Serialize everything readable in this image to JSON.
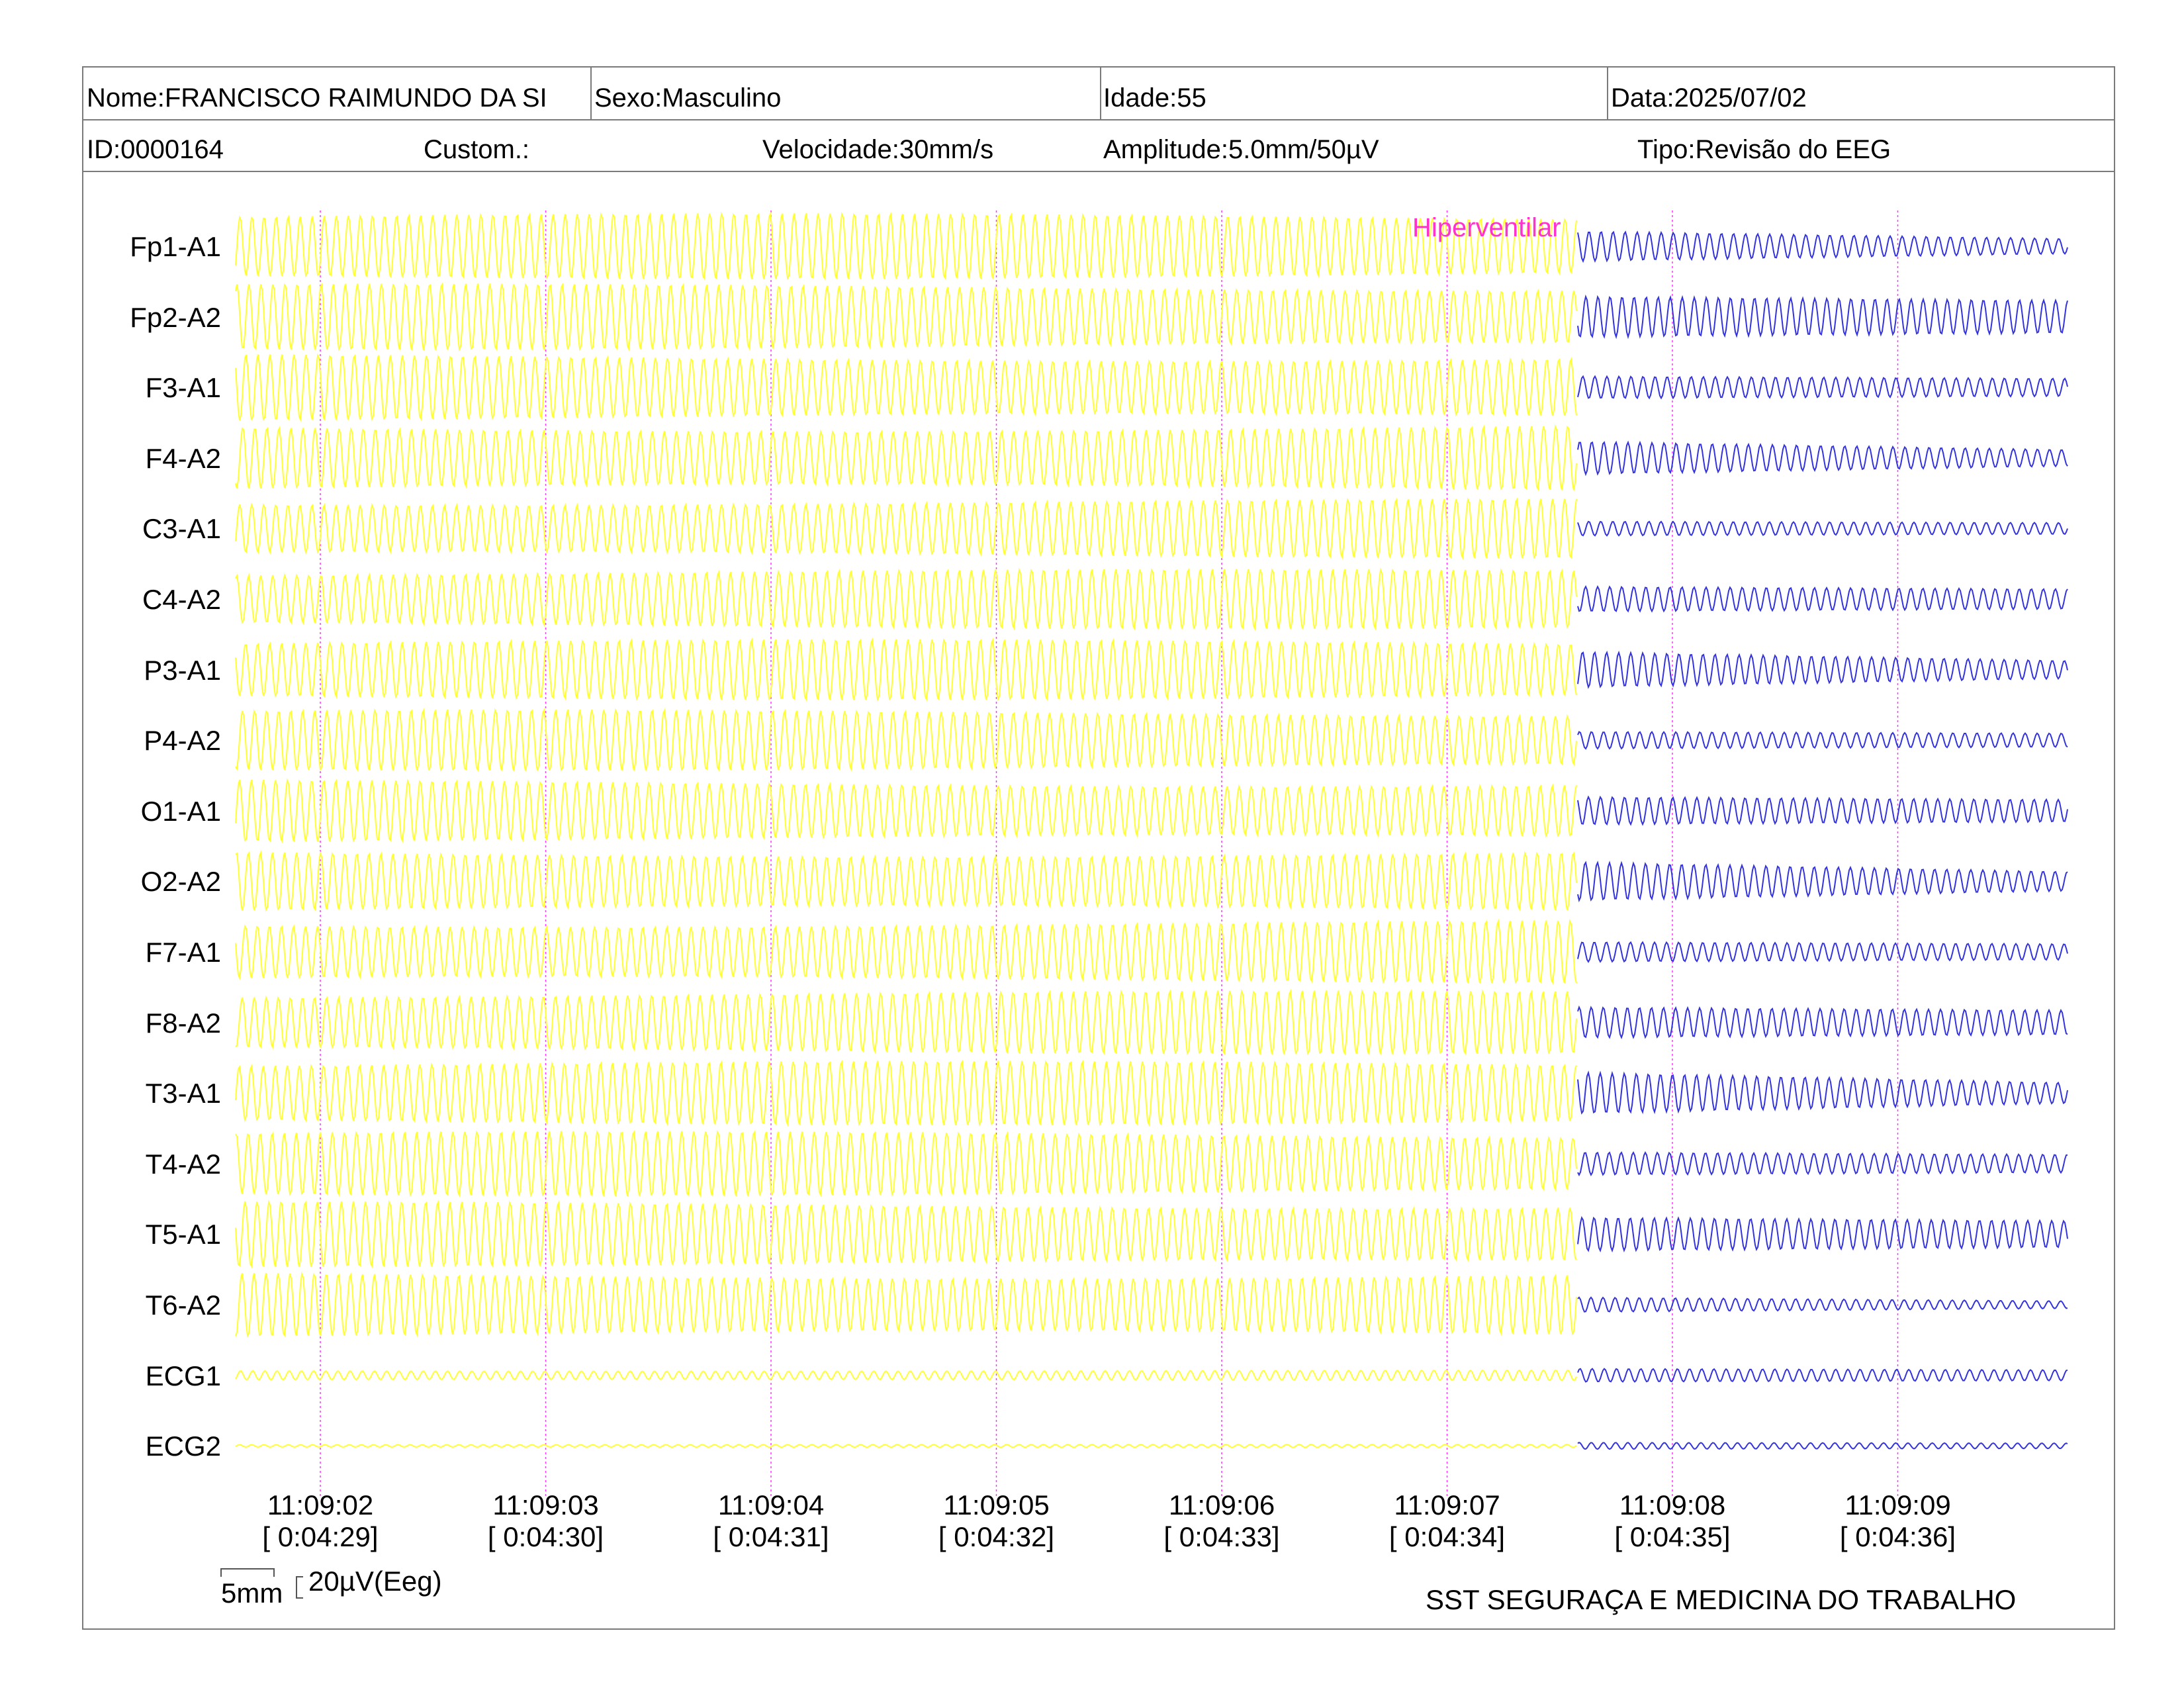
{
  "header": {
    "nome": "Nome:FRANCISCO RAIMUNDO DA SI",
    "sexo": "Sexo:Masculino",
    "idade": "Idade:55",
    "data": "Data:2025/07/02",
    "id": "ID:0000164",
    "custom": "Custom.:",
    "velocidade": "Velocidade:30mm/s",
    "amplitude": "Amplitude:5.0mm/50µV",
    "tipo": "Tipo:Revisão do EEG"
  },
  "annotation": {
    "label": "Hiperventilar",
    "color": "#ff33cc"
  },
  "colors": {
    "before_annotation": "#ffff33",
    "after_annotation": "#3333dd",
    "time_marker": "#ff33ff"
  },
  "scale_bar": {
    "horizontal": "5mm",
    "vertical": "20µV(Eeg)"
  },
  "footer": {
    "company": "SST SEGURAÇA E MEDICINA DO TRABALHO"
  },
  "chart_data": {
    "type": "line",
    "channels": [
      {
        "name": "Fp1-A1",
        "kind": "eeg"
      },
      {
        "name": "Fp2-A2",
        "kind": "eeg"
      },
      {
        "name": "F3-A1",
        "kind": "eeg"
      },
      {
        "name": "F4-A2",
        "kind": "eeg"
      },
      {
        "name": "C3-A1",
        "kind": "eeg"
      },
      {
        "name": "C4-A2",
        "kind": "eeg"
      },
      {
        "name": "P3-A1",
        "kind": "eeg"
      },
      {
        "name": "P4-A2",
        "kind": "eeg"
      },
      {
        "name": "O1-A1",
        "kind": "eeg"
      },
      {
        "name": "O2-A2",
        "kind": "eeg"
      },
      {
        "name": "F7-A1",
        "kind": "eeg"
      },
      {
        "name": "F8-A2",
        "kind": "eeg"
      },
      {
        "name": "T3-A1",
        "kind": "eeg"
      },
      {
        "name": "T4-A2",
        "kind": "eeg"
      },
      {
        "name": "T5-A1",
        "kind": "eeg"
      },
      {
        "name": "T6-A2",
        "kind": "eeg"
      },
      {
        "name": "ECG1",
        "kind": "ecg"
      },
      {
        "name": "ECG2",
        "kind": "ecg2"
      }
    ],
    "time_ticks": [
      {
        "clock": "11:09:02",
        "elapsed": "[ 0:04:29]"
      },
      {
        "clock": "11:09:03",
        "elapsed": "[ 0:04:30]"
      },
      {
        "clock": "11:09:04",
        "elapsed": "[ 0:04:31]"
      },
      {
        "clock": "11:09:05",
        "elapsed": "[ 0:04:32]"
      },
      {
        "clock": "11:09:06",
        "elapsed": "[ 0:04:33]"
      },
      {
        "clock": "11:09:07",
        "elapsed": "[ 0:04:34]"
      },
      {
        "clock": "11:09:08",
        "elapsed": "[ 0:04:35]"
      },
      {
        "clock": "11:09:09",
        "elapsed": "[ 0:04:36]"
      }
    ],
    "annotation_at_tick_fraction": 5.58
  }
}
